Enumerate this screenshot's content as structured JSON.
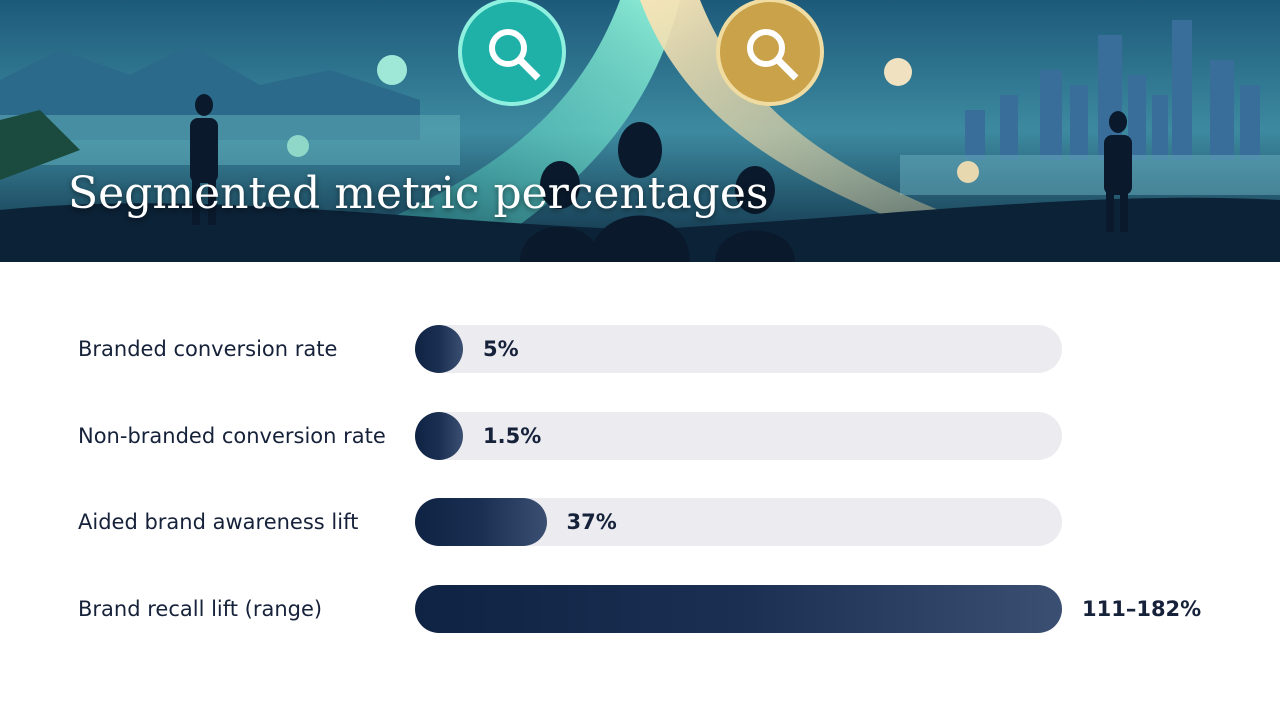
{
  "chart_data": {
    "type": "bar",
    "orientation": "horizontal",
    "title": "Segmented metric percentages",
    "categories": [
      "Branded conversion rate",
      "Non-branded conversion rate",
      "Aided brand awareness lift",
      "Brand recall lift (range)"
    ],
    "values": [
      5,
      1.5,
      37,
      [
        111,
        182
      ]
    ],
    "value_labels": [
      "5%",
      "1.5%",
      "37%",
      "111–182%"
    ],
    "xlim": [
      0,
      182
    ],
    "color": "#0f2344"
  }
}
